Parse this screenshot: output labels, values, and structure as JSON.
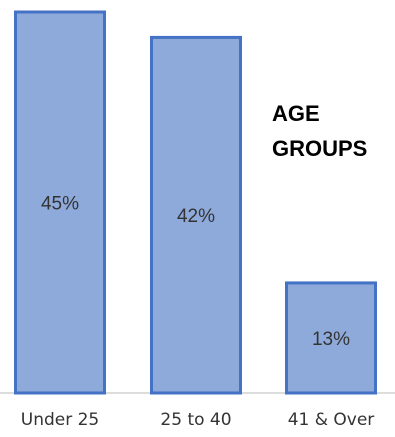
{
  "chart_data": {
    "type": "bar",
    "title_lines": [
      "AGE",
      "GROUPS"
    ],
    "categories": [
      "Under 25",
      "25 to 40",
      "41 & Over"
    ],
    "values": [
      45,
      42,
      13
    ],
    "data_labels": [
      "45%",
      "42%",
      "13%"
    ],
    "xlabel": "",
    "ylabel": "",
    "ylim": [
      0,
      45
    ],
    "grid": false,
    "legend": false,
    "colors": {
      "bar_fill": "#8eaadb",
      "bar_stroke": "#4472c4"
    }
  }
}
